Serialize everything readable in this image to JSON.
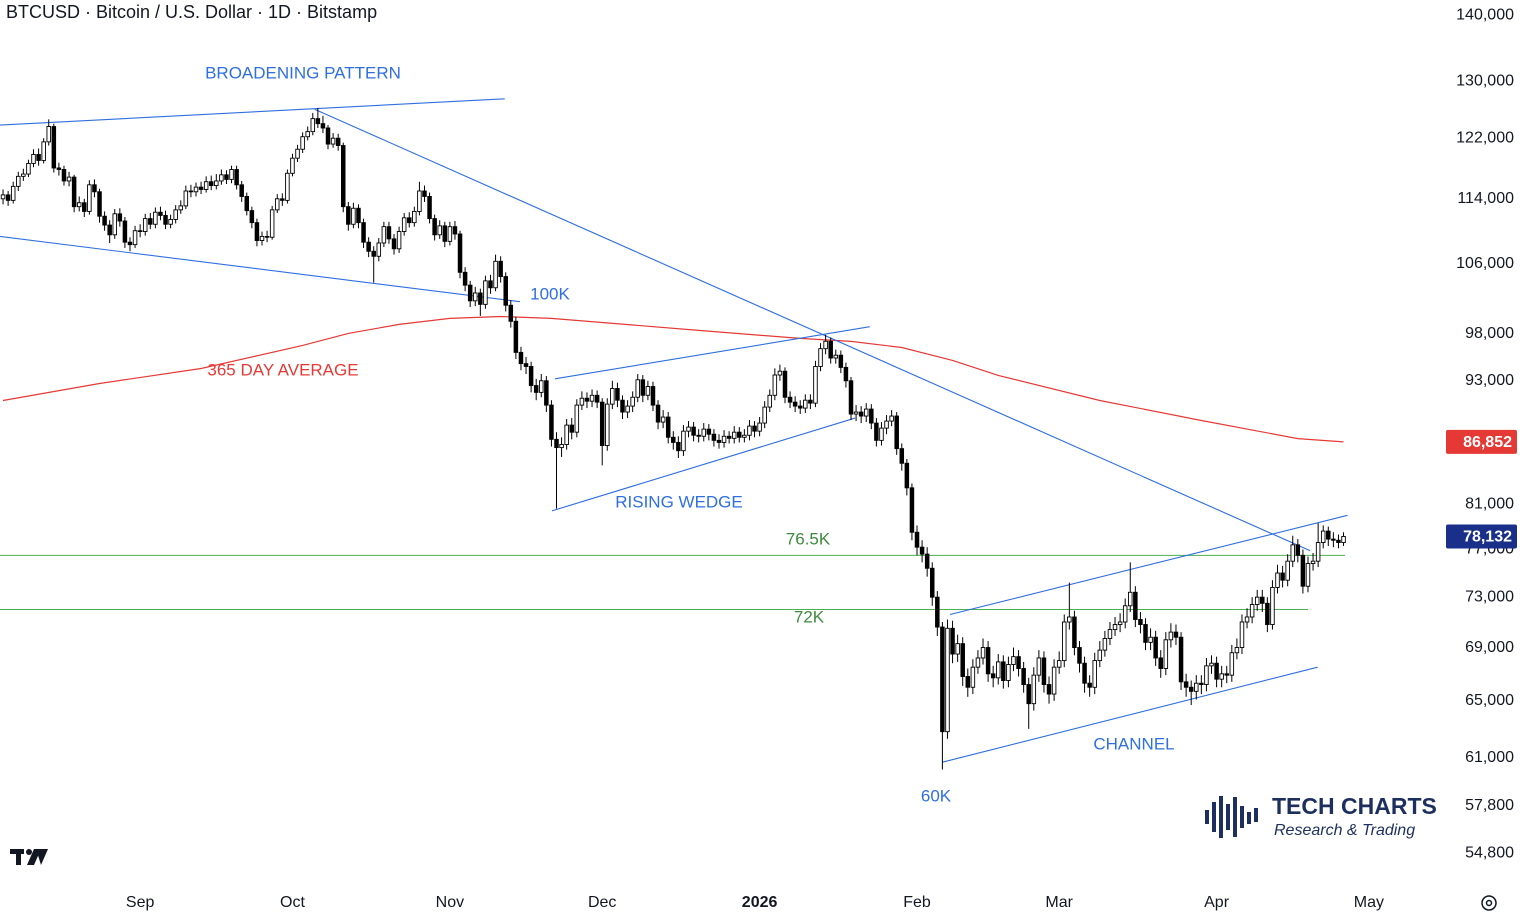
{
  "chart_data": {
    "type": "candlestick",
    "title": "BTCUSD · Bitcoin / U.S. Dollar · 1D · Bitstamp",
    "log_scale": true,
    "grid": false,
    "up_color": "#ffffff",
    "down_color": "#000000",
    "edge_color": "#000000",
    "xlim": [
      -0.6,
      283
    ],
    "ylim": [
      52900,
      142400
    ],
    "xticks": [
      {
        "value": 27,
        "label": "Sep"
      },
      {
        "value": 57,
        "label": "Oct"
      },
      {
        "value": 88,
        "label": "Nov"
      },
      {
        "value": 118,
        "label": "Dec"
      },
      {
        "value": 149,
        "label": "2026"
      },
      {
        "value": 180,
        "label": "Feb"
      },
      {
        "value": 208,
        "label": "Mar"
      },
      {
        "value": 239,
        "label": "Apr"
      },
      {
        "value": 269,
        "label": "May"
      }
    ],
    "yticks": [
      {
        "value": 140000,
        "label": "140,000"
      },
      {
        "value": 130000,
        "label": "130,000"
      },
      {
        "value": 122000,
        "label": "122,000"
      },
      {
        "value": 114000,
        "label": "114,000"
      },
      {
        "value": 106000,
        "label": "106,000"
      },
      {
        "value": 98000,
        "label": "98,000"
      },
      {
        "value": 93000,
        "label": "93,000"
      },
      {
        "value": 81000,
        "label": "81,000"
      },
      {
        "value": 77000,
        "label": "77,000"
      },
      {
        "value": 73000,
        "label": "73,000"
      },
      {
        "value": 69000,
        "label": "69,000"
      },
      {
        "value": 65000,
        "label": "65,000"
      },
      {
        "value": 61000,
        "label": "61,000"
      },
      {
        "value": 57800,
        "label": "57,800"
      },
      {
        "value": 54800,
        "label": "54,800"
      }
    ],
    "open": [
      114000,
      114500,
      113800,
      115600,
      116900,
      117200,
      118600,
      119800,
      119000,
      121500,
      123600,
      118000,
      117800,
      116300,
      116800,
      113000,
      113500,
      112400,
      115800,
      114900,
      111800,
      110700,
      109500,
      112100,
      111200,
      108600,
      108300,
      110000,
      109900,
      111500,
      110800,
      112300,
      111900,
      110800,
      111400,
      112600,
      113100,
      115000,
      114900,
      115500,
      115200,
      116200,
      115700,
      116300,
      117100,
      116500,
      117800,
      115800,
      114300,
      112500,
      111000,
      108800,
      109300,
      109200,
      112600,
      114000,
      113800,
      117300,
      119300,
      120500,
      122200,
      122900,
      124700,
      124000,
      123400,
      121200,
      122000,
      121000,
      113000,
      110800,
      112800,
      111000,
      108600,
      107500,
      106900,
      108500,
      110500,
      109000,
      107800,
      109900,
      111600,
      111000,
      112400,
      115000,
      114300,
      111500,
      109500,
      110600,
      108700,
      110500,
      109600,
      105000,
      103500,
      101700,
      102600,
      101300,
      104000,
      103200,
      106300,
      104500,
      101200,
      99400,
      96000,
      94800,
      94500,
      92500,
      91800,
      93000,
      90500,
      87100,
      86300,
      86600,
      88500,
      87800,
      90500,
      91200,
      90900,
      91500,
      90800,
      86500,
      90600,
      92200,
      91000,
      89800,
      90400,
      91300,
      93100,
      91500,
      92400,
      90500,
      88800,
      89300,
      87300,
      86800,
      86000,
      87900,
      88300,
      87500,
      87400,
      88100,
      87600,
      87000,
      86800,
      87400,
      87200,
      87800,
      87300,
      87500,
      88400,
      87900,
      88700,
      90300,
      91500,
      93600,
      94000,
      91300,
      90800,
      90400,
      90200,
      91000,
      90700,
      94500,
      96400,
      97200,
      95400,
      95700,
      94400,
      93000,
      89600,
      89800,
      89400,
      90100,
      88700,
      87000,
      88200,
      88900,
      89400,
      86200,
      84800,
      82500,
      78500,
      77200,
      76600,
      75400,
      73000,
      70600,
      62800,
      70500,
      68500,
      69300,
      66800,
      66000,
      67500,
      68200,
      69000,
      67000,
      66700,
      67900,
      66500,
      67700,
      68300,
      67400,
      66200,
      64800,
      66900,
      68200,
      66200,
      65500,
      67500,
      68000,
      71000,
      71400,
      69000,
      67800,
      66300,
      66000,
      68000,
      68800,
      69700,
      70400,
      70800,
      71000,
      72300,
      73400,
      71200,
      70800,
      69400,
      69800,
      68200,
      67400,
      69600,
      70200,
      69800,
      66400,
      66000,
      65700,
      66300,
      66200,
      67600,
      67800,
      66600,
      67000,
      66900,
      68600,
      69000,
      71000,
      71400,
      72400,
      73000,
      72500,
      70800,
      73800,
      75000,
      74400,
      76000,
      77400,
      76500,
      73900,
      75800,
      76000,
      77600,
      78600,
      77900,
      77800,
      77600
    ],
    "high": [
      115200,
      115000,
      116200,
      117500,
      117900,
      119100,
      120500,
      120600,
      122000,
      124600,
      124000,
      118700,
      118300,
      117500,
      117100,
      114300,
      114000,
      116400,
      116500,
      115300,
      112400,
      111300,
      112700,
      112800,
      111700,
      109200,
      110600,
      110800,
      112100,
      112200,
      112900,
      113000,
      112500,
      112000,
      113200,
      113800,
      115700,
      115800,
      116100,
      116200,
      116900,
      117000,
      117200,
      117800,
      117700,
      118300,
      118300,
      116300,
      114800,
      113000,
      111500,
      109900,
      110000,
      113100,
      114600,
      114700,
      117800,
      119900,
      121100,
      122800,
      123600,
      125500,
      126200,
      125100,
      123800,
      122700,
      122600,
      121400,
      113600,
      113500,
      113300,
      111500,
      109200,
      108100,
      109100,
      111100,
      111100,
      109600,
      110500,
      112200,
      112300,
      113000,
      116200,
      115700,
      114800,
      112000,
      111300,
      111100,
      111100,
      111200,
      110000,
      105600,
      104000,
      103300,
      103100,
      104600,
      104700,
      107100,
      106900,
      105000,
      101800,
      99900,
      96600,
      95500,
      95000,
      93200,
      93700,
      93500,
      91000,
      87800,
      87300,
      89100,
      89200,
      91100,
      91900,
      91800,
      92100,
      92000,
      91200,
      91200,
      93000,
      92800,
      91500,
      91000,
      91900,
      93700,
      93600,
      93000,
      92900,
      91000,
      90000,
      89800,
      87900,
      87400,
      88500,
      88900,
      88800,
      88100,
      88700,
      88600,
      88100,
      87600,
      88000,
      87900,
      88400,
      88300,
      88100,
      89000,
      88900,
      89300,
      90900,
      92100,
      94300,
      94700,
      94400,
      91900,
      91400,
      91000,
      91600,
      91600,
      95100,
      97000,
      97900,
      97600,
      96300,
      96200,
      94900,
      93400,
      90500,
      90400,
      90700,
      90600,
      89200,
      88800,
      89500,
      90000,
      89800,
      86700,
      85200,
      82900,
      79100,
      77800,
      77200,
      75900,
      73500,
      71000,
      71200,
      71100,
      70000,
      69800,
      67400,
      68100,
      68800,
      69700,
      69500,
      67600,
      68500,
      68400,
      68300,
      69000,
      68800,
      67900,
      66700,
      67500,
      68800,
      68700,
      66800,
      68100,
      68700,
      71600,
      74200,
      71900,
      69500,
      68300,
      66900,
      68600,
      69500,
      70300,
      71000,
      71400,
      71700,
      72900,
      75900,
      73900,
      71800,
      71300,
      70500,
      70300,
      68800,
      70200,
      70900,
      70800,
      70200,
      67000,
      66500,
      66900,
      66900,
      68200,
      68400,
      68300,
      67600,
      67600,
      69200,
      69700,
      71600,
      72100,
      73000,
      73600,
      73600,
      73000,
      74400,
      75700,
      75600,
      76600,
      78200,
      77900,
      77000,
      76400,
      76700,
      79300,
      79100,
      79000,
      78500,
      78300,
      78500
    ],
    "low": [
      113300,
      113100,
      113400,
      115000,
      116300,
      116800,
      118100,
      118300,
      118600,
      121000,
      117400,
      117000,
      115700,
      115600,
      112300,
      112400,
      111700,
      112000,
      114200,
      111000,
      110000,
      108500,
      109000,
      110500,
      107900,
      107500,
      107900,
      109200,
      109400,
      110200,
      110300,
      111300,
      110200,
      110300,
      110900,
      112100,
      112700,
      114200,
      114300,
      114600,
      114800,
      115100,
      115200,
      115800,
      115900,
      116000,
      115200,
      113600,
      111900,
      110300,
      108100,
      108200,
      108600,
      108900,
      112200,
      113100,
      113400,
      116900,
      118800,
      120000,
      121700,
      122400,
      123400,
      122700,
      120500,
      120700,
      120300,
      112300,
      110000,
      110300,
      110300,
      107900,
      106800,
      103800,
      106300,
      108000,
      108400,
      107100,
      107300,
      109400,
      110400,
      110500,
      111900,
      113600,
      110900,
      108800,
      109000,
      108000,
      108200,
      108900,
      104300,
      102800,
      101000,
      101100,
      100000,
      100800,
      102500,
      102800,
      103800,
      100500,
      98700,
      95300,
      94100,
      93700,
      91800,
      91000,
      91300,
      89800,
      86400,
      80600,
      85400,
      86100,
      87100,
      87300,
      90000,
      90200,
      90300,
      90200,
      84600,
      86000,
      90100,
      90300,
      89100,
      89200,
      89800,
      90800,
      90800,
      91000,
      89900,
      88100,
      88200,
      86700,
      86100,
      85300,
      85500,
      87300,
      86900,
      86800,
      86900,
      87000,
      86400,
      86200,
      86300,
      86700,
      86700,
      86800,
      86800,
      87000,
      87300,
      87400,
      88200,
      89800,
      91000,
      93000,
      90700,
      90200,
      89800,
      89600,
      89700,
      90100,
      90300,
      94000,
      95800,
      94800,
      94800,
      93800,
      92300,
      89000,
      88900,
      88700,
      88800,
      88100,
      86400,
      86500,
      87600,
      88400,
      85600,
      84100,
      81800,
      77800,
      76500,
      75900,
      74700,
      72300,
      69900,
      60200,
      62300,
      67800,
      67900,
      66100,
      65300,
      65500,
      67000,
      67700,
      66400,
      66000,
      66200,
      65900,
      66000,
      67200,
      66800,
      65600,
      63000,
      64300,
      66400,
      65600,
      64800,
      65000,
      67000,
      67500,
      70400,
      68400,
      67100,
      65600,
      65300,
      65500,
      67500,
      68300,
      69200,
      69900,
      70200,
      70500,
      71800,
      70600,
      70100,
      68800,
      68800,
      67600,
      66700,
      66900,
      69000,
      69200,
      65800,
      65300,
      64700,
      65100,
      65500,
      65700,
      67000,
      66000,
      66000,
      66300,
      66400,
      68100,
      68500,
      70500,
      70900,
      71900,
      71800,
      70200,
      70400,
      73300,
      73800,
      73900,
      75500,
      75900,
      73300,
      73400,
      75200,
      75500,
      77100,
      77300,
      77200,
      77100,
      77300
    ],
    "close": [
      114500,
      113800,
      115600,
      116900,
      117200,
      118600,
      119800,
      119000,
      121500,
      123600,
      118000,
      117800,
      116300,
      116800,
      113000,
      113500,
      112400,
      115800,
      114900,
      111800,
      110700,
      109500,
      112100,
      111200,
      108600,
      108300,
      110000,
      109900,
      111500,
      110800,
      112300,
      111900,
      110800,
      111400,
      112600,
      113100,
      115000,
      114900,
      115500,
      115200,
      116200,
      115700,
      116300,
      117100,
      116500,
      117800,
      115800,
      114300,
      112500,
      111000,
      108800,
      109300,
      109200,
      112600,
      114000,
      113800,
      117300,
      119300,
      120500,
      122200,
      122900,
      124700,
      124000,
      123400,
      121200,
      122000,
      121000,
      113000,
      110800,
      112800,
      111000,
      108600,
      107500,
      106900,
      108500,
      110500,
      109000,
      107800,
      109900,
      111600,
      111000,
      112400,
      115000,
      114300,
      111500,
      109500,
      110600,
      108700,
      110500,
      109600,
      105000,
      103500,
      101700,
      102600,
      101300,
      104000,
      103200,
      106300,
      104500,
      101200,
      99400,
      96000,
      94800,
      94500,
      92500,
      91800,
      93000,
      90500,
      87100,
      86300,
      86600,
      88500,
      87800,
      90500,
      91200,
      90900,
      91500,
      90800,
      86500,
      90600,
      92200,
      91000,
      89800,
      90400,
      91300,
      93100,
      91500,
      92400,
      90500,
      88800,
      89300,
      87300,
      86800,
      86000,
      87900,
      88300,
      87500,
      87400,
      88100,
      87600,
      87000,
      86800,
      87400,
      87200,
      87800,
      87300,
      87500,
      88400,
      87900,
      88700,
      90300,
      91500,
      93600,
      94000,
      91300,
      90800,
      90400,
      90200,
      91000,
      90700,
      94500,
      96400,
      97200,
      95400,
      95700,
      94400,
      93000,
      89600,
      89800,
      89400,
      90100,
      88700,
      87000,
      88200,
      88900,
      89400,
      86200,
      84800,
      82500,
      78500,
      77200,
      76600,
      75400,
      73000,
      70600,
      62800,
      70500,
      68500,
      69300,
      66800,
      66000,
      67500,
      68200,
      69000,
      67000,
      66700,
      67900,
      66500,
      67700,
      68300,
      67400,
      66200,
      64800,
      66900,
      68200,
      66200,
      65500,
      67500,
      68000,
      71000,
      71400,
      69000,
      67800,
      66300,
      66000,
      68000,
      68800,
      69700,
      70400,
      70800,
      71000,
      72300,
      73400,
      71200,
      70800,
      69400,
      69800,
      68200,
      67400,
      69600,
      70200,
      69800,
      66400,
      66000,
      65700,
      66300,
      66200,
      67600,
      67800,
      66600,
      67000,
      66900,
      68600,
      69000,
      71000,
      71400,
      72400,
      73000,
      72500,
      70800,
      73800,
      75000,
      74400,
      76000,
      77400,
      76500,
      73900,
      75800,
      76000,
      77600,
      78600,
      77900,
      77800,
      77600,
      78132
    ],
    "last_label": "78,132",
    "last_color": "#1a2f8a",
    "moving_average": {
      "name": "365 DAY AVERAGE",
      "color": "#e53935",
      "x": [
        0,
        19,
        39,
        59,
        68,
        78,
        88,
        98,
        108,
        118,
        137,
        157,
        167,
        177,
        187,
        196,
        216,
        236,
        255,
        264
      ],
      "values": [
        90970,
        92720,
        94290,
        96750,
        98060,
        99050,
        99720,
        99930,
        99720,
        99270,
        98390,
        97510,
        97190,
        96530,
        95140,
        93560,
        90970,
        88960,
        87170,
        86852
      ],
      "last_label": "86,852"
    },
    "levels": [
      {
        "value": 76500,
        "label": "76.5K",
        "end": 264.3,
        "color": "#4caf50"
      },
      {
        "value": 72000,
        "label": "72K",
        "end": 257,
        "color": "#4caf50"
      }
    ],
    "trendlines": [
      {
        "points": [
          [
            -0.6,
            123800
          ],
          [
            98.8,
            127500
          ]
        ],
        "color": "#2f6fe0"
      },
      {
        "points": [
          [
            -0.6,
            109300
          ],
          [
            101.8,
            101600
          ]
        ],
        "color": "#2f6fe0"
      },
      {
        "points": [
          [
            61.4,
            126000
          ],
          [
            257.4,
            76900
          ]
        ],
        "color": "#2f6fe0"
      },
      {
        "points": [
          [
            108.7,
            93200
          ],
          [
            170.7,
            98800
          ]
        ],
        "color": "#2f6fe0"
      },
      {
        "points": [
          [
            108.1,
            80400
          ],
          [
            167.8,
            89200
          ]
        ],
        "color": "#2f6fe0"
      },
      {
        "points": [
          [
            186.5,
            71600
          ],
          [
            264.8,
            80000
          ]
        ],
        "color": "#2f6fe0"
      },
      {
        "points": [
          [
            185.1,
            60700
          ],
          [
            258.9,
            67500
          ]
        ],
        "color": "#2f6fe0"
      }
    ],
    "annotations": [
      "BROADENING PATTERN",
      "100K",
      "RISING WEDGE",
      "CHANNEL",
      "60K"
    ]
  },
  "logo": {
    "title": "TECH CHARTS",
    "subtitle": "Research & Trading"
  }
}
